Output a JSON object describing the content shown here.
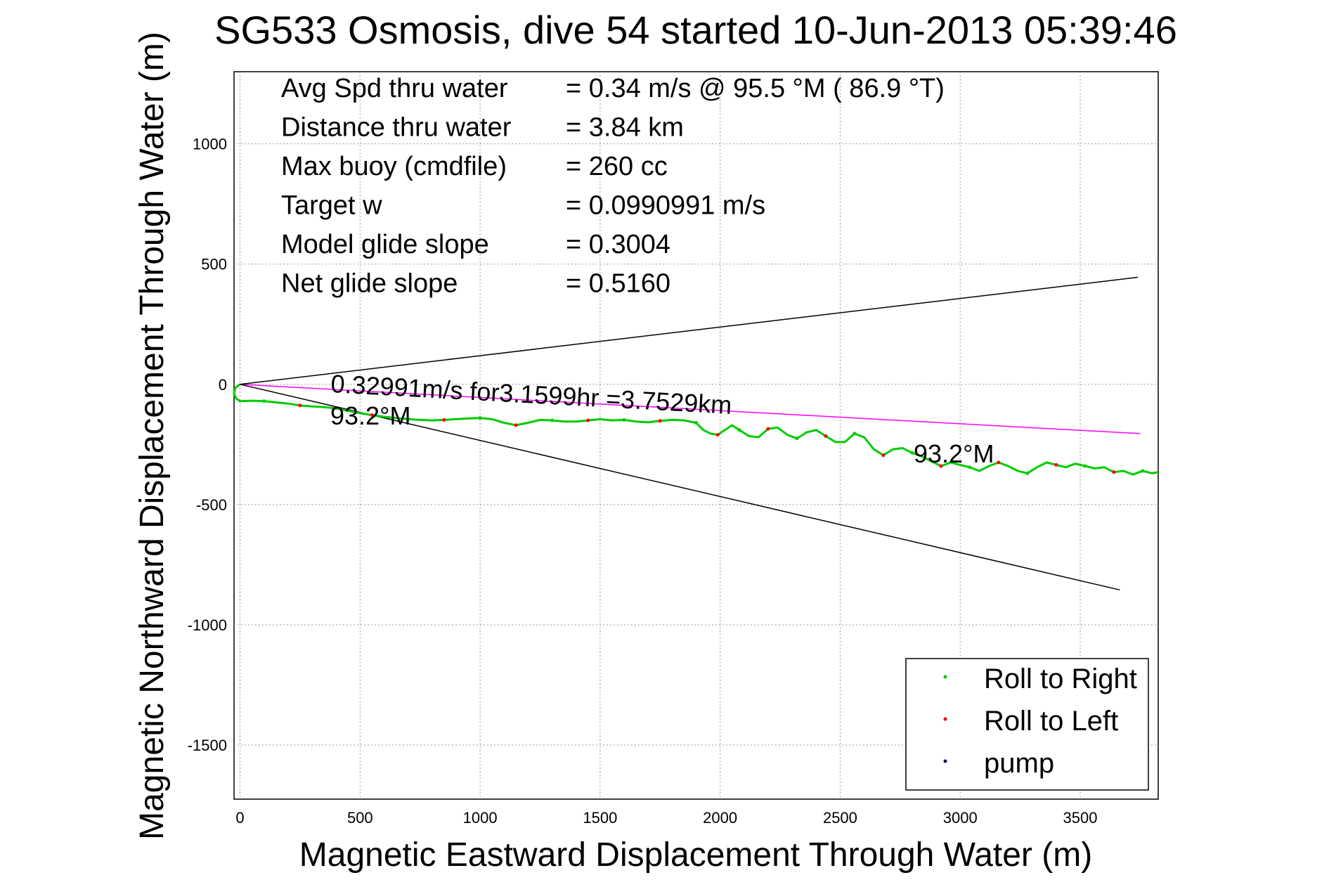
{
  "chart_data": {
    "type": "line",
    "title": "SG533 Osmosis, dive 54 started 10-Jun-2013 05:39:46",
    "xlabel": "Magnetic Eastward Displacement Through Water (m)",
    "ylabel": "Magnetic Northward Displacement Through Water (m)",
    "xlim": [
      -25,
      3825
    ],
    "ylim": [
      -1725,
      1300
    ],
    "xticks": [
      0,
      500,
      1000,
      1500,
      2000,
      2500,
      3000,
      3500
    ],
    "yticks": [
      -1500,
      -1000,
      -500,
      0,
      500,
      1000
    ],
    "grid": true,
    "legend_position": "bottom-right",
    "stats": [
      {
        "label": "Avg Spd thru water",
        "value": "=  0.34 m/s @  95.5 °M ( 86.9 °T)"
      },
      {
        "label": "Distance thru water",
        "value": "=  3.84 km"
      },
      {
        "label": "Max buoy (cmdfile)",
        "value": "= 260 cc"
      },
      {
        "label": "Target w",
        "value": "= 0.0990991 m/s"
      },
      {
        "label": "Model glide slope",
        "value": "= 0.3004"
      },
      {
        "label": "Net glide slope",
        "value": "= 0.5160"
      }
    ],
    "annotations": {
      "speed": "0.32991m/s for3.1599hr =3.7529km",
      "heading_start": "93.2°M",
      "heading_end": "93.2°M"
    },
    "legend": [
      {
        "name": "Roll to Right",
        "color": "#00cc00"
      },
      {
        "name": "Roll to Left",
        "color": "#ff0000"
      },
      {
        "name": "pump",
        "color": "#000080"
      }
    ],
    "reference_lines": [
      {
        "name": "heading_line",
        "color": "#ff00ff",
        "x": [
          0,
          3750
        ],
        "y": [
          0,
          -205
        ]
      },
      {
        "name": "cone_upper",
        "color": "#000000",
        "x": [
          0,
          3740
        ],
        "y": [
          0,
          445
        ]
      },
      {
        "name": "cone_lower",
        "color": "#000000",
        "x": [
          0,
          3665
        ],
        "y": [
          0,
          -855
        ]
      }
    ],
    "track_x": [
      0,
      -20,
      -25,
      -15,
      0,
      50,
      100,
      150,
      200,
      250,
      300,
      350,
      400,
      450,
      500,
      550,
      600,
      650,
      700,
      750,
      800,
      850,
      900,
      950,
      1000,
      1050,
      1100,
      1150,
      1200,
      1250,
      1300,
      1350,
      1400,
      1450,
      1500,
      1550,
      1600,
      1650,
      1700,
      1750,
      1800,
      1850,
      1900,
      1930,
      1960,
      1990,
      2020,
      2050,
      2080,
      2120,
      2160,
      2200,
      2240,
      2280,
      2320,
      2360,
      2400,
      2440,
      2480,
      2520,
      2560,
      2600,
      2640,
      2680,
      2720,
      2760,
      2800,
      2840,
      2880,
      2920,
      2960,
      3000,
      3040,
      3080,
      3120,
      3160,
      3200,
      3240,
      3280,
      3320,
      3360,
      3400,
      3440,
      3480,
      3520,
      3560,
      3600,
      3640,
      3680,
      3720,
      3760,
      3800,
      3825
    ],
    "track_y": [
      0,
      -15,
      -40,
      -60,
      -70,
      -68,
      -70,
      -75,
      -80,
      -88,
      -92,
      -95,
      -100,
      -110,
      -120,
      -128,
      -135,
      -140,
      -145,
      -148,
      -150,
      -148,
      -145,
      -142,
      -140,
      -145,
      -160,
      -170,
      -160,
      -148,
      -150,
      -155,
      -155,
      -150,
      -145,
      -150,
      -148,
      -155,
      -158,
      -152,
      -148,
      -150,
      -160,
      -190,
      -205,
      -210,
      -190,
      -170,
      -190,
      -215,
      -220,
      -185,
      -180,
      -210,
      -225,
      -200,
      -190,
      -215,
      -240,
      -240,
      -205,
      -220,
      -270,
      -295,
      -270,
      -265,
      -285,
      -300,
      -320,
      -340,
      -325,
      -335,
      -345,
      -360,
      -340,
      -325,
      -340,
      -360,
      -370,
      -345,
      -325,
      -335,
      -345,
      -330,
      -340,
      -350,
      -345,
      -365,
      -360,
      -375,
      -360,
      -370,
      -365
    ]
  }
}
